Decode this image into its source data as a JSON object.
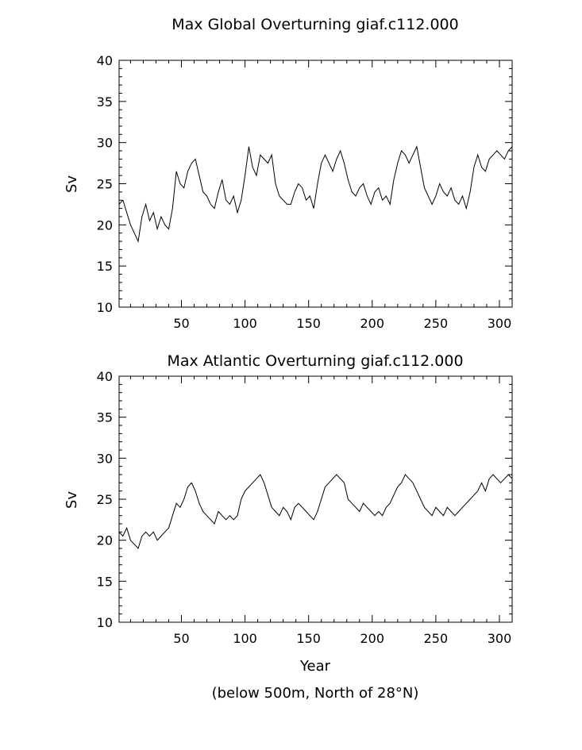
{
  "chart_data": [
    {
      "type": "line",
      "title": "Max Global Overturning giaf.c112.000",
      "xlabel": "",
      "ylabel": "Sv",
      "xlim": [
        1,
        310
      ],
      "ylim": [
        10,
        40
      ],
      "xticks": [
        50,
        100,
        150,
        200,
        250,
        300
      ],
      "yticks": [
        10,
        15,
        20,
        25,
        30,
        35,
        40
      ],
      "grid": false,
      "series": [
        {
          "x": [
            1,
            4,
            7,
            10,
            13,
            16,
            19,
            22,
            25,
            28,
            31,
            34,
            37,
            40,
            43,
            46,
            49,
            52,
            55,
            58,
            61,
            64,
            67,
            70,
            73,
            76,
            79,
            82,
            85,
            88,
            91,
            94,
            97,
            100,
            103,
            106,
            109,
            112,
            115,
            118,
            121,
            124,
            127,
            130,
            133,
            136,
            139,
            142,
            145,
            148,
            151,
            154,
            157,
            160,
            163,
            166,
            169,
            172,
            175,
            178,
            181,
            184,
            187,
            190,
            193,
            196,
            199,
            202,
            205,
            208,
            211,
            214,
            217,
            220,
            223,
            226,
            229,
            232,
            235,
            238,
            241,
            244,
            247,
            250,
            253,
            256,
            259,
            262,
            265,
            268,
            271,
            274,
            277,
            280,
            283,
            286,
            289,
            292,
            295,
            298,
            301,
            304,
            307,
            310
          ],
          "y": [
            22.5,
            23,
            21.5,
            20,
            19,
            18,
            21,
            22.5,
            20.5,
            21.5,
            19.5,
            21,
            20,
            19.5,
            22,
            26.5,
            25,
            24.5,
            26.5,
            27.5,
            28,
            26,
            24,
            23.5,
            22.5,
            22,
            24,
            25.5,
            23,
            22.5,
            23.5,
            21.5,
            23,
            26,
            29.5,
            27,
            26,
            28.5,
            28,
            27.5,
            28.5,
            25,
            23.5,
            23,
            22.5,
            22.5,
            24,
            25,
            24.5,
            23,
            23.5,
            22,
            25,
            27.5,
            28.5,
            27.5,
            26.5,
            28,
            29,
            27.5,
            25.5,
            24,
            23.5,
            24.5,
            25,
            23.5,
            22.5,
            24,
            24.5,
            23,
            23.5,
            22.5,
            25.5,
            27.5,
            29,
            28.5,
            27.5,
            28.5,
            29.5,
            27,
            24.5,
            23.5,
            22.5,
            23.5,
            25,
            24,
            23.5,
            24.5,
            23,
            22.5,
            23.5,
            22,
            24,
            27,
            28.5,
            27,
            26.5,
            28,
            28.5,
            29,
            28.5,
            28,
            29,
            29.5
          ]
        }
      ]
    },
    {
      "type": "line",
      "title": "Max Atlantic Overturning giaf.c112.000",
      "xlabel": "Year",
      "ylabel": "Sv",
      "xlim": [
        1,
        310
      ],
      "ylim": [
        10,
        40
      ],
      "xticks": [
        50,
        100,
        150,
        200,
        250,
        300
      ],
      "yticks": [
        10,
        15,
        20,
        25,
        30,
        35,
        40
      ],
      "grid": false,
      "series": [
        {
          "x": [
            1,
            4,
            7,
            10,
            13,
            16,
            19,
            22,
            25,
            28,
            31,
            34,
            37,
            40,
            43,
            46,
            49,
            52,
            55,
            58,
            61,
            64,
            67,
            70,
            73,
            76,
            79,
            82,
            85,
            88,
            91,
            94,
            97,
            100,
            103,
            106,
            109,
            112,
            115,
            118,
            121,
            124,
            127,
            130,
            133,
            136,
            139,
            142,
            145,
            148,
            151,
            154,
            157,
            160,
            163,
            166,
            169,
            172,
            175,
            178,
            181,
            184,
            187,
            190,
            193,
            196,
            199,
            202,
            205,
            208,
            211,
            214,
            217,
            220,
            223,
            226,
            229,
            232,
            235,
            238,
            241,
            244,
            247,
            250,
            253,
            256,
            259,
            262,
            265,
            268,
            271,
            274,
            277,
            280,
            283,
            286,
            289,
            292,
            295,
            298,
            301,
            304,
            307,
            310
          ],
          "y": [
            21,
            20.5,
            21.5,
            20,
            19.5,
            19,
            20.5,
            21,
            20.5,
            21,
            20,
            20.5,
            21,
            21.5,
            23,
            24.5,
            24,
            25,
            26.5,
            27,
            26,
            24.5,
            23.5,
            23,
            22.5,
            22,
            23.5,
            23,
            22.5,
            23,
            22.5,
            23,
            25,
            26,
            26.5,
            27,
            27.5,
            28,
            27,
            25.5,
            24,
            23.5,
            23,
            24,
            23.5,
            22.5,
            24,
            24.5,
            24,
            23.5,
            23,
            22.5,
            23.5,
            25,
            26.5,
            27,
            27.5,
            28,
            27.5,
            27,
            25,
            24.5,
            24,
            23.5,
            24.5,
            24,
            23.5,
            23,
            23.5,
            23,
            24,
            24.5,
            25.5,
            26.5,
            27,
            28,
            27.5,
            27,
            26,
            25,
            24,
            23.5,
            23,
            24,
            23.5,
            23,
            24,
            23.5,
            23,
            23.5,
            24,
            24.5,
            25,
            25.5,
            26,
            27,
            26,
            27.5,
            28,
            27.5,
            27,
            27.5,
            28,
            27.5
          ]
        }
      ]
    }
  ],
  "footnote": "(below 500m, North of 28°N)"
}
